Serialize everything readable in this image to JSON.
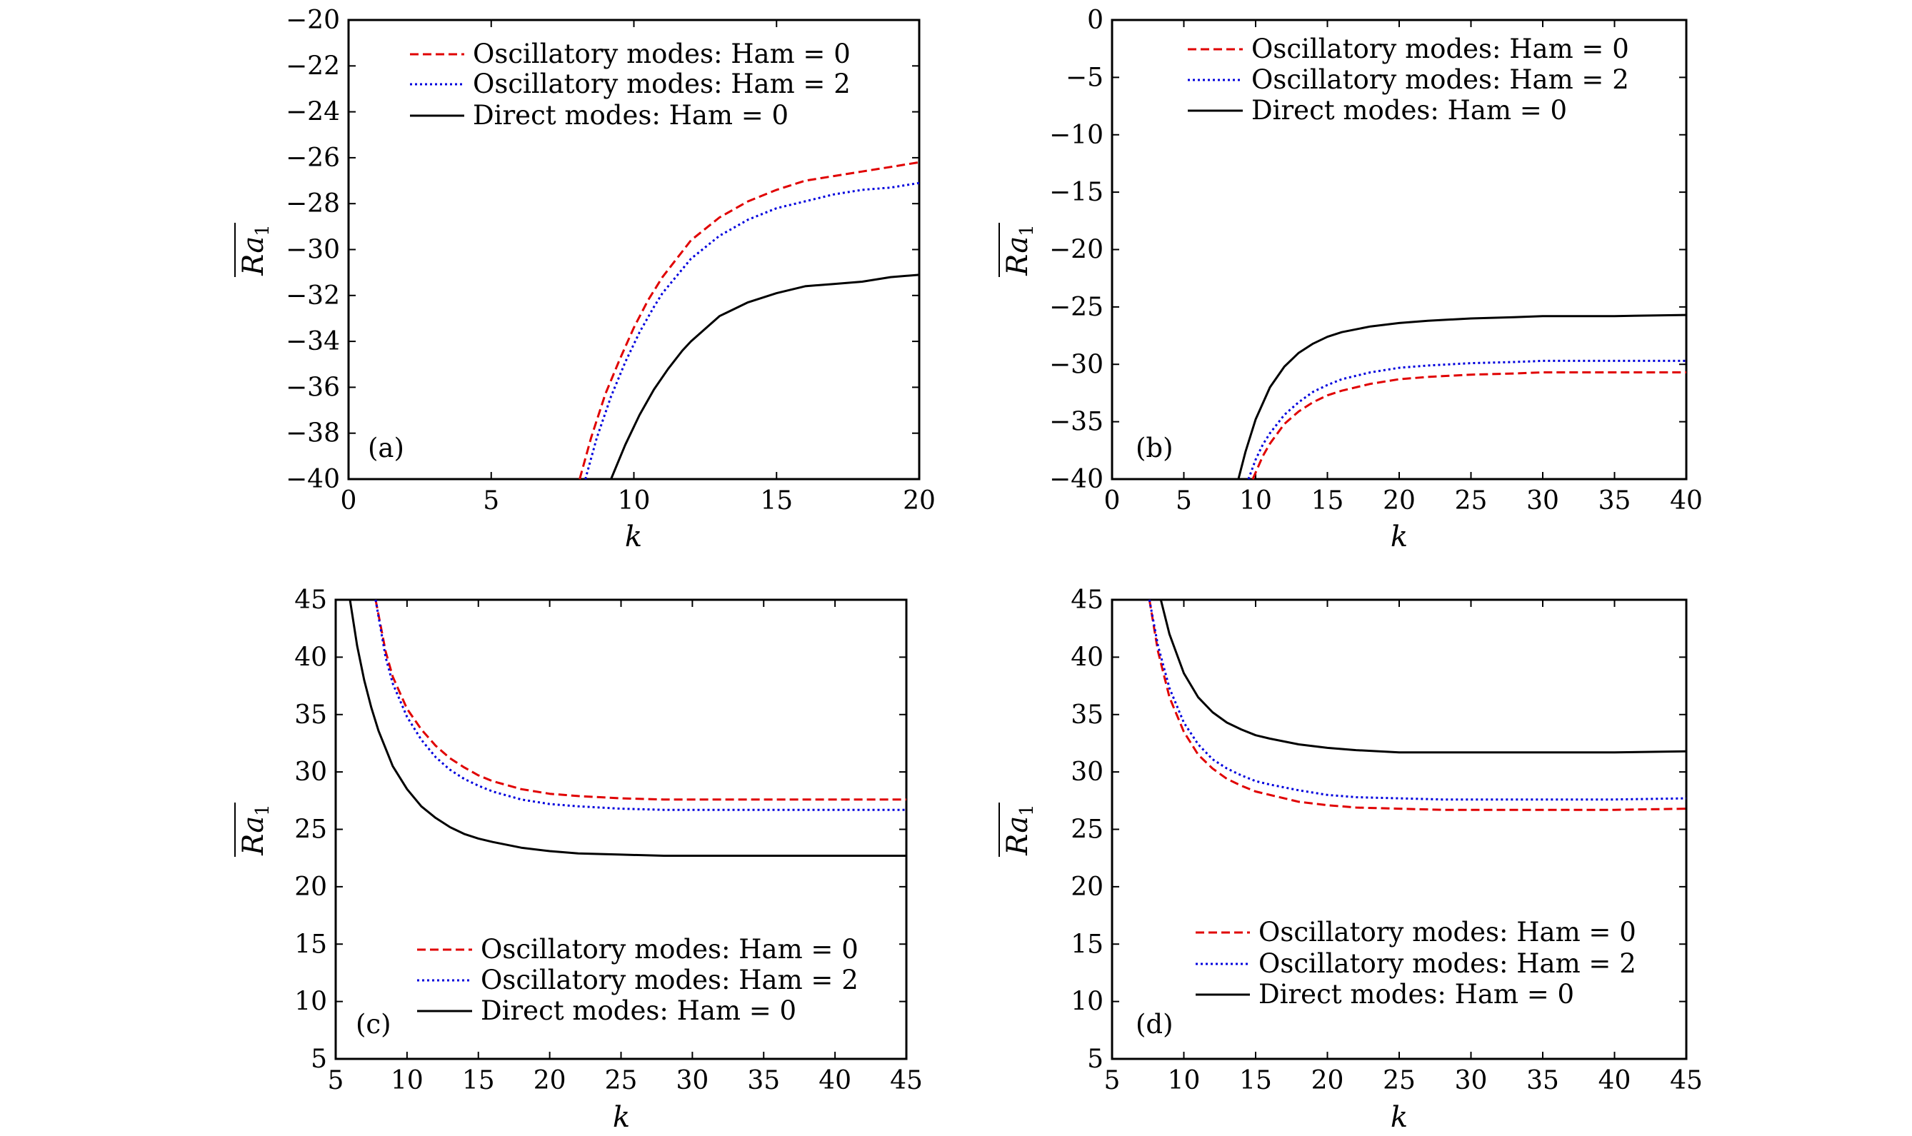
{
  "chart_data": [
    {
      "panel": "(a)",
      "type": "line",
      "xlabel": "k",
      "ylabel": "Ra",
      "ylabel_sub": "1",
      "xlim": [
        0,
        20
      ],
      "ylim": [
        -40,
        -20
      ],
      "xticks": [
        0,
        5,
        10,
        15,
        20
      ],
      "yticks": [
        -40,
        -38,
        -36,
        -34,
        -32,
        -30,
        -28,
        -26,
        -24,
        -22,
        -20
      ],
      "xtick_labels": [
        "0",
        "5",
        "10",
        "15",
        "20"
      ],
      "ytick_labels": [
        "−40",
        "−38",
        "−36",
        "−34",
        "−32",
        "−30",
        "−28",
        "−26",
        "−24",
        "−22",
        "−20"
      ],
      "legend_position": "top-right",
      "series": [
        {
          "name": "Oscillatory modes: Ham = 0",
          "color": "#e00000",
          "style": "dashed",
          "x": [
            8.1,
            8.5,
            9,
            9.5,
            10,
            10.5,
            11,
            12,
            13,
            14,
            15,
            16,
            17,
            18,
            19,
            20
          ],
          "y": [
            -40,
            -38.2,
            -36.3,
            -34.8,
            -33.4,
            -32.2,
            -31.2,
            -29.6,
            -28.6,
            -27.9,
            -27.4,
            -27.0,
            -26.8,
            -26.6,
            -26.4,
            -26.2
          ]
        },
        {
          "name": "Oscillatory modes: Ham = 2",
          "color": "#0000dd",
          "style": "dotted",
          "x": [
            8.3,
            8.7,
            9.2,
            9.7,
            10.2,
            10.7,
            11,
            12,
            13,
            14,
            15,
            16,
            17,
            18,
            19,
            20
          ],
          "y": [
            -40,
            -38.2,
            -36.4,
            -34.9,
            -33.6,
            -32.5,
            -31.9,
            -30.4,
            -29.4,
            -28.7,
            -28.2,
            -27.9,
            -27.6,
            -27.4,
            -27.3,
            -27.1
          ]
        },
        {
          "name": "Direct modes: Ham = 0",
          "color": "#000000",
          "style": "solid",
          "x": [
            9.2,
            9.7,
            10.2,
            10.7,
            11.2,
            11.7,
            12,
            13,
            14,
            15,
            16,
            17,
            18,
            19,
            20
          ],
          "y": [
            -40,
            -38.5,
            -37.2,
            -36.1,
            -35.2,
            -34.4,
            -34.0,
            -32.9,
            -32.3,
            -31.9,
            -31.6,
            -31.5,
            -31.4,
            -31.2,
            -31.1
          ]
        }
      ]
    },
    {
      "panel": "(b)",
      "type": "line",
      "xlabel": "k",
      "ylabel": "Ra",
      "ylabel_sub": "1",
      "xlim": [
        0,
        40
      ],
      "ylim": [
        -40,
        0
      ],
      "xticks": [
        0,
        5,
        10,
        15,
        20,
        25,
        30,
        35,
        40
      ],
      "yticks": [
        -40,
        -35,
        -30,
        -25,
        -20,
        -15,
        -10,
        -5,
        0
      ],
      "xtick_labels": [
        "0",
        "5",
        "10",
        "15",
        "20",
        "25",
        "30",
        "35",
        "40"
      ],
      "ytick_labels": [
        "−40",
        "−35",
        "−30",
        "−25",
        "−20",
        "−15",
        "−10",
        "−5",
        "0"
      ],
      "legend_position": "top-right",
      "series": [
        {
          "name": "Oscillatory modes: Ham = 0",
          "color": "#e00000",
          "style": "dashed",
          "x": [
            9.8,
            10.5,
            11,
            12,
            13,
            14,
            15,
            16,
            18,
            20,
            22,
            25,
            28,
            30,
            35,
            40
          ],
          "y": [
            -40,
            -38.0,
            -36.9,
            -35.2,
            -34.1,
            -33.3,
            -32.7,
            -32.3,
            -31.7,
            -31.3,
            -31.1,
            -30.9,
            -30.8,
            -30.7,
            -30.7,
            -30.7
          ]
        },
        {
          "name": "Oscillatory modes: Ham = 2",
          "color": "#0000dd",
          "style": "dotted",
          "x": [
            9.5,
            10,
            10.5,
            11,
            12,
            13,
            14,
            15,
            16,
            18,
            20,
            22,
            25,
            28,
            30,
            35,
            40
          ],
          "y": [
            -40,
            -38.3,
            -37.0,
            -36.0,
            -34.4,
            -33.3,
            -32.4,
            -31.8,
            -31.3,
            -30.7,
            -30.3,
            -30.1,
            -29.9,
            -29.8,
            -29.7,
            -29.7,
            -29.7
          ]
        },
        {
          "name": "Direct modes: Ham = 0",
          "color": "#000000",
          "style": "solid",
          "x": [
            8.8,
            9.3,
            10,
            11,
            12,
            13,
            14,
            15,
            16,
            18,
            20,
            22,
            25,
            28,
            30,
            35,
            40
          ],
          "y": [
            -40,
            -37.6,
            -34.8,
            -32.0,
            -30.2,
            -29.0,
            -28.2,
            -27.6,
            -27.2,
            -26.7,
            -26.4,
            -26.2,
            -26.0,
            -25.9,
            -25.8,
            -25.8,
            -25.7
          ]
        }
      ]
    },
    {
      "panel": "(c)",
      "type": "line",
      "xlabel": "k",
      "ylabel": "Ra",
      "ylabel_sub": "1",
      "xlim": [
        5,
        45
      ],
      "ylim": [
        5,
        45
      ],
      "xticks": [
        5,
        10,
        15,
        20,
        25,
        30,
        35,
        40,
        45
      ],
      "yticks": [
        5,
        10,
        15,
        20,
        25,
        30,
        35,
        40,
        45
      ],
      "xtick_labels": [
        "5",
        "10",
        "15",
        "20",
        "25",
        "30",
        "35",
        "40",
        "45"
      ],
      "ytick_labels": [
        "5",
        "10",
        "15",
        "20",
        "25",
        "30",
        "35",
        "40",
        "45"
      ],
      "legend_position": "bottom-right",
      "series": [
        {
          "name": "Oscillatory modes: Ham = 0",
          "color": "#e00000",
          "style": "dashed",
          "x": [
            7.8,
            8.5,
            9,
            10,
            11,
            12,
            13,
            14,
            15,
            16,
            18,
            20,
            22,
            25,
            28,
            30,
            35,
            40,
            45
          ],
          "y": [
            45,
            40.5,
            38.3,
            35.5,
            33.7,
            32.3,
            31.2,
            30.4,
            29.7,
            29.2,
            28.5,
            28.1,
            27.9,
            27.7,
            27.6,
            27.6,
            27.6,
            27.6,
            27.6
          ]
        },
        {
          "name": "Oscillatory modes: Ham = 2",
          "color": "#0000dd",
          "style": "dotted",
          "x": [
            7.8,
            8.5,
            9,
            10,
            11,
            12,
            13,
            14,
            15,
            16,
            18,
            20,
            22,
            25,
            28,
            30,
            35,
            40,
            45
          ],
          "y": [
            45,
            40.0,
            37.7,
            34.8,
            32.8,
            31.3,
            30.2,
            29.4,
            28.8,
            28.3,
            27.6,
            27.2,
            27.0,
            26.8,
            26.7,
            26.7,
            26.7,
            26.7,
            26.7
          ]
        },
        {
          "name": "Direct modes: Ham = 0",
          "color": "#000000",
          "style": "solid",
          "x": [
            6,
            6.5,
            7,
            7.5,
            8,
            9,
            10,
            11,
            12,
            13,
            14,
            15,
            16,
            18,
            20,
            22,
            25,
            28,
            30,
            35,
            40,
            45
          ],
          "y": [
            45,
            41.0,
            38.0,
            35.6,
            33.6,
            30.5,
            28.5,
            27.0,
            26.0,
            25.2,
            24.6,
            24.2,
            23.9,
            23.4,
            23.1,
            22.9,
            22.8,
            22.7,
            22.7,
            22.7,
            22.7,
            22.7
          ]
        }
      ]
    },
    {
      "panel": "(d)",
      "type": "line",
      "xlabel": "k",
      "ylabel": "Ra",
      "ylabel_sub": "1",
      "xlim": [
        5,
        45
      ],
      "ylim": [
        5,
        45
      ],
      "xticks": [
        5,
        10,
        15,
        20,
        25,
        30,
        35,
        40,
        45
      ],
      "yticks": [
        5,
        10,
        15,
        20,
        25,
        30,
        35,
        40,
        45
      ],
      "xtick_labels": [
        "5",
        "10",
        "15",
        "20",
        "25",
        "30",
        "35",
        "40",
        "45"
      ],
      "ytick_labels": [
        "5",
        "10",
        "15",
        "20",
        "25",
        "30",
        "35",
        "40",
        "45"
      ],
      "legend_position": "bottom-right",
      "series": [
        {
          "name": "Oscillatory modes: Ham = 0",
          "color": "#e00000",
          "style": "dashed",
          "x": [
            7.6,
            8.2,
            9,
            10,
            11,
            12,
            13,
            14,
            15,
            16,
            18,
            20,
            22,
            25,
            28,
            30,
            35,
            40,
            45
          ],
          "y": [
            45,
            40.5,
            36.5,
            33.5,
            31.5,
            30.3,
            29.4,
            28.8,
            28.3,
            28.0,
            27.4,
            27.1,
            26.9,
            26.8,
            26.7,
            26.7,
            26.7,
            26.7,
            26.8
          ]
        },
        {
          "name": "Oscillatory modes: Ham = 2",
          "color": "#0000dd",
          "style": "dotted",
          "x": [
            7.6,
            8.2,
            9,
            10,
            11,
            12,
            13,
            14,
            15,
            16,
            18,
            20,
            22,
            25,
            28,
            30,
            35,
            40,
            45
          ],
          "y": [
            45,
            41.0,
            37.3,
            34.3,
            32.4,
            31.1,
            30.3,
            29.7,
            29.2,
            28.9,
            28.4,
            28.0,
            27.8,
            27.7,
            27.6,
            27.6,
            27.6,
            27.6,
            27.7
          ]
        },
        {
          "name": "Direct modes: Ham = 0",
          "color": "#000000",
          "style": "solid",
          "x": [
            8.4,
            9,
            10,
            11,
            12,
            13,
            14,
            15,
            16,
            18,
            20,
            22,
            25,
            28,
            30,
            35,
            40,
            45
          ],
          "y": [
            45,
            42.0,
            38.6,
            36.5,
            35.2,
            34.3,
            33.7,
            33.2,
            32.9,
            32.4,
            32.1,
            31.9,
            31.7,
            31.7,
            31.7,
            31.7,
            31.7,
            31.8
          ]
        }
      ]
    }
  ]
}
